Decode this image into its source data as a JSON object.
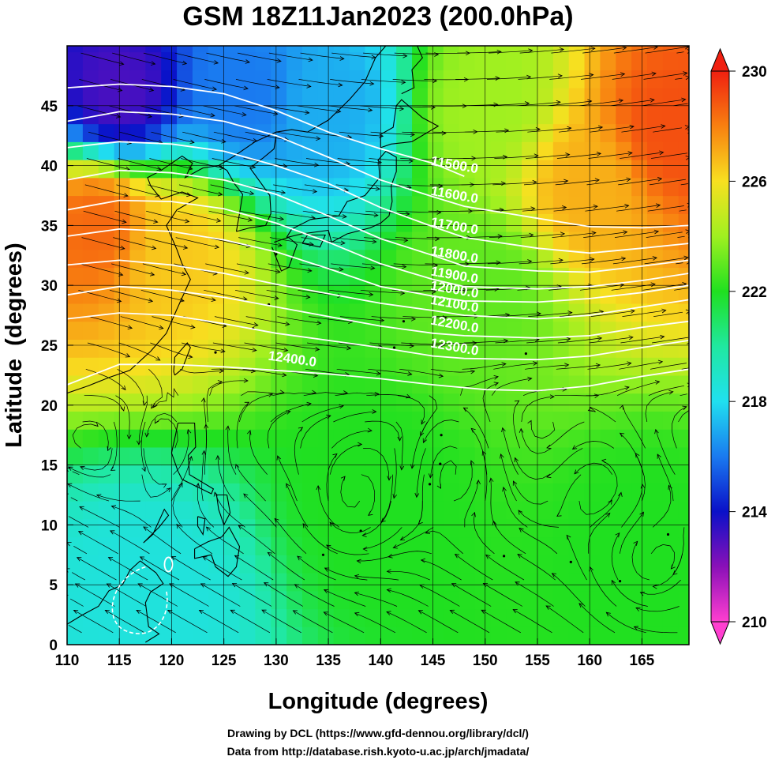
{
  "title": "GSM 18Z11Jan2023 (200.0hPa)",
  "credits": [
    "Drawing by DCL (https://www.gfd-dennou.org/library/dcl/)",
    "Data from http://database.rish.kyoto-u.ac.jp/arch/jmadata/"
  ],
  "chart_data": {
    "type": "heatmap",
    "title": "GSM 18Z11Jan2023 (200.0hPa)",
    "xlabel": "Longitude (degrees)",
    "ylabel": "Latitude  (degrees)",
    "xlim": [
      110,
      169.5
    ],
    "ylim": [
      0,
      50
    ],
    "xticks": [
      "110",
      "115",
      "120",
      "125",
      "130",
      "135",
      "140",
      "145",
      "150",
      "155",
      "160",
      "165"
    ],
    "yticks": [
      "0",
      "5",
      "10",
      "15",
      "20",
      "25",
      "30",
      "35",
      "40",
      "45"
    ],
    "xtick_values": [
      110,
      115,
      120,
      125,
      130,
      135,
      140,
      145,
      150,
      155,
      160,
      165
    ],
    "ytick_values": [
      0,
      5,
      10,
      15,
      20,
      25,
      30,
      35,
      40,
      45
    ],
    "grid": true,
    "colorbar": {
      "range": [
        210,
        230
      ],
      "ticks": [
        "210",
        "214",
        "218",
        "222",
        "226",
        "230"
      ],
      "tick_values": [
        210,
        214,
        218,
        222,
        226,
        230
      ],
      "colors": [
        "#ff3fd0",
        "#8a10b8",
        "#0a10c8",
        "#1a7af0",
        "#20e0f0",
        "#20e8a0",
        "#20e020",
        "#a0f020",
        "#f8e020",
        "#f88010",
        "#f02010"
      ]
    },
    "shading_field": [
      {
        "lon": 115,
        "lat": 46,
        "value": 213
      },
      {
        "lon": 127,
        "lat": 46,
        "value": 216
      },
      {
        "lon": 135,
        "lat": 45,
        "value": 217
      },
      {
        "lon": 113,
        "lat": 35,
        "value": 228.5
      },
      {
        "lon": 120,
        "lat": 33,
        "value": 226.5
      },
      {
        "lon": 168,
        "lat": 43,
        "value": 229
      },
      {
        "lon": 160,
        "lat": 38,
        "value": 227
      },
      {
        "lon": 150,
        "lat": 45,
        "value": 224
      },
      {
        "lon": 150,
        "lat": 30,
        "value": 223
      },
      {
        "lon": 118,
        "lat": 4,
        "value": 218.5
      },
      {
        "lon": 165,
        "lat": 8,
        "value": 222
      },
      {
        "lon": 140,
        "lat": 12,
        "value": 222
      }
    ],
    "contours": [
      {
        "label": "11500.0",
        "points": [
          [
            110,
            46.5
          ],
          [
            115,
            46.8
          ],
          [
            120,
            46.6
          ],
          [
            125,
            46
          ],
          [
            130,
            44.6
          ],
          [
            135,
            42.8
          ],
          [
            140,
            41.4
          ],
          [
            145,
            40.2
          ],
          [
            148,
            39.1
          ]
        ]
      },
      {
        "label": "11600.0",
        "points": [
          [
            110,
            43.7
          ],
          [
            115,
            44.5
          ],
          [
            120,
            44.3
          ],
          [
            125,
            43.7
          ],
          [
            130,
            42.5
          ],
          [
            135,
            40.7
          ],
          [
            140,
            38.8
          ],
          [
            145,
            37.4
          ],
          [
            148,
            36.6
          ],
          [
            155,
            35.6
          ],
          [
            160,
            34.9
          ],
          [
            165,
            34.8
          ],
          [
            169.5,
            35
          ]
        ]
      },
      {
        "label": "11700.0",
        "points": [
          [
            110,
            41.5
          ],
          [
            115,
            42
          ],
          [
            120,
            41.8
          ],
          [
            125,
            41.2
          ],
          [
            130,
            40
          ],
          [
            135,
            38.5
          ],
          [
            140,
            36.5
          ],
          [
            145,
            34.9
          ],
          [
            148,
            34
          ],
          [
            155,
            33.1
          ],
          [
            160,
            32.7
          ],
          [
            165,
            33.1
          ],
          [
            169.5,
            33.5
          ]
        ]
      },
      {
        "label": "11800.0",
        "points": [
          [
            110,
            38.8
          ],
          [
            115,
            39.6
          ],
          [
            120,
            39.4
          ],
          [
            125,
            38.8
          ],
          [
            130,
            37.6
          ],
          [
            135,
            35.8
          ],
          [
            140,
            33.9
          ],
          [
            145,
            32.5
          ],
          [
            148,
            31.6
          ],
          [
            155,
            31.2
          ],
          [
            160,
            31.1
          ],
          [
            165,
            31.6
          ],
          [
            169.5,
            32.1
          ]
        ]
      },
      {
        "label": "11900.0",
        "points": [
          [
            110,
            36.3
          ],
          [
            115,
            37.1
          ],
          [
            120,
            37
          ],
          [
            125,
            36.4
          ],
          [
            130,
            35.2
          ],
          [
            135,
            33.6
          ],
          [
            140,
            31.8
          ],
          [
            145,
            30.5
          ],
          [
            148,
            29.9
          ],
          [
            155,
            29.7
          ],
          [
            160,
            29.9
          ],
          [
            165,
            30.4
          ],
          [
            169.5,
            31
          ]
        ]
      },
      {
        "label": "12000.0",
        "points": [
          [
            110,
            34.1
          ],
          [
            115,
            34.7
          ],
          [
            120,
            34.5
          ],
          [
            125,
            33.8
          ],
          [
            130,
            32.8
          ],
          [
            135,
            31.4
          ],
          [
            140,
            29.9
          ],
          [
            145,
            29.1
          ],
          [
            148,
            28.7
          ],
          [
            155,
            28.6
          ],
          [
            160,
            28.9
          ],
          [
            165,
            29.4
          ],
          [
            169.5,
            30
          ]
        ]
      },
      {
        "label": "12100.0",
        "points": [
          [
            110,
            31.7
          ],
          [
            115,
            32.1
          ],
          [
            120,
            31.7
          ],
          [
            125,
            31
          ],
          [
            130,
            30.1
          ],
          [
            135,
            29.3
          ],
          [
            140,
            28.5
          ],
          [
            145,
            27.9
          ],
          [
            148,
            27.5
          ],
          [
            155,
            27.2
          ],
          [
            160,
            27.5
          ],
          [
            165,
            28.2
          ],
          [
            169.5,
            28.8
          ]
        ]
      },
      {
        "label": "12200.0",
        "points": [
          [
            110,
            29.2
          ],
          [
            115,
            29.9
          ],
          [
            120,
            29.6
          ],
          [
            125,
            29
          ],
          [
            130,
            28.2
          ],
          [
            135,
            27.4
          ],
          [
            140,
            26.6
          ],
          [
            145,
            26
          ],
          [
            148,
            25.8
          ],
          [
            155,
            25.6
          ],
          [
            160,
            25.8
          ],
          [
            165,
            26.5
          ],
          [
            169.5,
            27
          ]
        ]
      },
      {
        "label": "12300.0",
        "points": [
          [
            110,
            27.2
          ],
          [
            115,
            27.7
          ],
          [
            120,
            27.5
          ],
          [
            125,
            26.8
          ],
          [
            130,
            26
          ],
          [
            135,
            25.4
          ],
          [
            140,
            24.8
          ],
          [
            145,
            24.1
          ],
          [
            148,
            23.9
          ],
          [
            155,
            23.8
          ],
          [
            160,
            24.1
          ],
          [
            165,
            24.8
          ],
          [
            169.5,
            25.4
          ]
        ]
      },
      {
        "label": "12400.0",
        "points": [
          [
            110,
            21.7
          ],
          [
            115,
            23.4
          ],
          [
            120,
            23.4
          ],
          [
            125,
            23.2
          ],
          [
            130,
            22.9
          ],
          [
            135,
            22.6
          ],
          [
            140,
            22.2
          ],
          [
            145,
            21.7
          ],
          [
            150,
            21.3
          ],
          [
            155,
            21.2
          ],
          [
            160,
            21.6
          ],
          [
            165,
            22.4
          ],
          [
            169.5,
            23
          ]
        ]
      }
    ]
  }
}
